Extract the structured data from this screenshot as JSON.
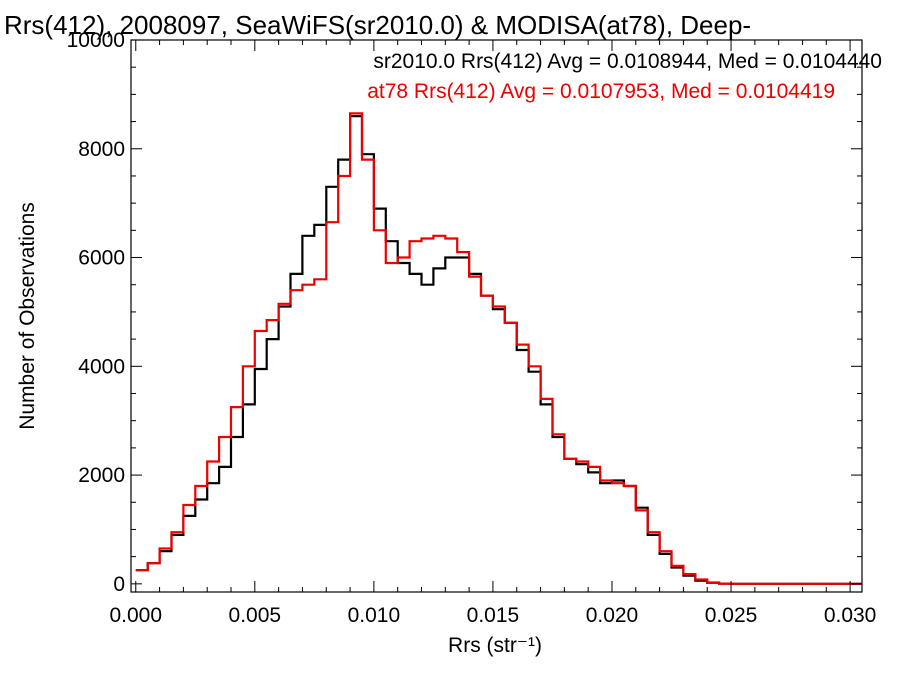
{
  "chart_data": {
    "type": "line",
    "title": "Rrs(412), 2008097, SeaWiFS(sr2010.0) & MODISA(at78), Deep-",
    "xlabel": "Rrs (str⁻¹)",
    "ylabel": "Number of Observations",
    "xlim": [
      -0.0002,
      0.0305
    ],
    "ylim": [
      -150,
      10000
    ],
    "xticks": [
      0.0,
      0.005,
      0.01,
      0.015,
      0.02,
      0.025,
      0.03
    ],
    "xtick_labels": [
      "0.000",
      "0.005",
      "0.010",
      "0.015",
      "0.020",
      "0.025",
      "0.030"
    ],
    "yticks": [
      0,
      2000,
      4000,
      6000,
      8000,
      10000
    ],
    "ytick_labels": [
      "0",
      "2000",
      "4000",
      "6000",
      "8000",
      "10000"
    ],
    "grid": false,
    "legend_placement": "top-right",
    "series": [
      {
        "name": "sr2010.0",
        "color": "#000000",
        "stats_text": "sr2010.0 Rrs(412) Avg = 0.0108944, Med = 0.0104440",
        "x": [
          0.0,
          0.0005,
          0.001,
          0.0015,
          0.002,
          0.0025,
          0.003,
          0.0035,
          0.004,
          0.0045,
          0.005,
          0.0055,
          0.006,
          0.0065,
          0.007,
          0.0075,
          0.008,
          0.0085,
          0.009,
          0.0095,
          0.01,
          0.0105,
          0.011,
          0.0115,
          0.012,
          0.0125,
          0.013,
          0.0135,
          0.014,
          0.0145,
          0.015,
          0.0155,
          0.016,
          0.0165,
          0.017,
          0.0175,
          0.018,
          0.0185,
          0.019,
          0.0195,
          0.02,
          0.0205,
          0.021,
          0.0215,
          0.022,
          0.0225,
          0.023,
          0.0235,
          0.024,
          0.0245,
          0.025,
          0.026,
          0.027,
          0.028,
          0.029,
          0.03
        ],
        "y": [
          250,
          380,
          600,
          900,
          1250,
          1550,
          1850,
          2150,
          2700,
          3300,
          3950,
          4500,
          5100,
          5700,
          6400,
          6600,
          7300,
          7800,
          8600,
          7900,
          6900,
          6300,
          5900,
          5700,
          5500,
          5800,
          6000,
          6000,
          5700,
          5300,
          5050,
          4800,
          4300,
          3900,
          3300,
          2700,
          2300,
          2200,
          2050,
          1850,
          1900,
          1800,
          1400,
          900,
          550,
          300,
          150,
          60,
          20,
          5,
          0,
          0,
          0,
          0,
          0,
          0
        ]
      },
      {
        "name": "at78",
        "color": "#ee0000",
        "stats_text": "at78 Rrs(412) Avg = 0.0107953, Med = 0.0104419",
        "x": [
          0.0,
          0.0005,
          0.001,
          0.0015,
          0.002,
          0.0025,
          0.003,
          0.0035,
          0.004,
          0.0045,
          0.005,
          0.0055,
          0.006,
          0.0065,
          0.007,
          0.0075,
          0.008,
          0.0085,
          0.009,
          0.0095,
          0.01,
          0.0105,
          0.011,
          0.0115,
          0.012,
          0.0125,
          0.013,
          0.0135,
          0.014,
          0.0145,
          0.015,
          0.0155,
          0.016,
          0.0165,
          0.017,
          0.0175,
          0.018,
          0.0185,
          0.019,
          0.0195,
          0.02,
          0.0205,
          0.021,
          0.0215,
          0.022,
          0.0225,
          0.023,
          0.0235,
          0.024,
          0.0245,
          0.025,
          0.026,
          0.027,
          0.028,
          0.029,
          0.03
        ],
        "y": [
          250,
          380,
          650,
          950,
          1450,
          1800,
          2250,
          2700,
          3250,
          4000,
          4650,
          4850,
          5150,
          5400,
          5500,
          5600,
          6650,
          7500,
          8650,
          7800,
          6500,
          5900,
          6000,
          6300,
          6350,
          6400,
          6350,
          6100,
          5650,
          5300,
          5100,
          4800,
          4400,
          4000,
          3400,
          2750,
          2300,
          2250,
          2150,
          1900,
          1850,
          1800,
          1350,
          950,
          600,
          330,
          180,
          80,
          25,
          5,
          0,
          0,
          0,
          0,
          0,
          0
        ]
      }
    ]
  }
}
